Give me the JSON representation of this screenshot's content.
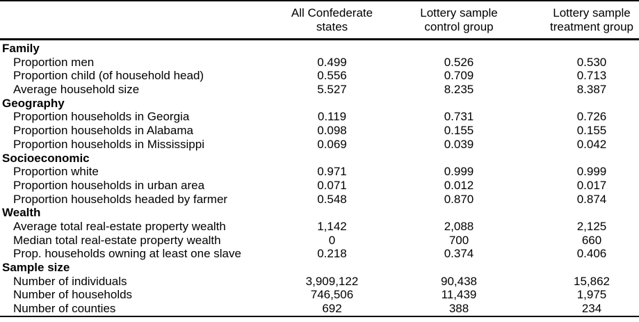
{
  "table": {
    "columns": [
      "All Confederate\nstates",
      "Lottery sample\ncontrol group",
      "Lottery sample\ntreatment group"
    ],
    "rows": [
      {
        "section": "Family"
      },
      {
        "label": "Proportion men",
        "values": [
          "0.499",
          "0.526",
          "0.530"
        ]
      },
      {
        "label": "Proportion child (of household head)",
        "values": [
          "0.556",
          "0.709",
          "0.713"
        ]
      },
      {
        "label": "Average household size",
        "values": [
          "5.527",
          "8.235",
          "8.387"
        ]
      },
      {
        "section": "Geography"
      },
      {
        "label": "Proportion households in Georgia",
        "values": [
          "0.119",
          "0.731",
          "0.726"
        ]
      },
      {
        "label": "Proportion households in Alabama",
        "values": [
          "0.098",
          "0.155",
          "0.155"
        ]
      },
      {
        "label": "Proportion households in Mississippi",
        "values": [
          "0.069",
          "0.039",
          "0.042"
        ]
      },
      {
        "section": "Socioeconomic"
      },
      {
        "label": "Proportion white",
        "values": [
          "0.971",
          "0.999",
          "0.999"
        ]
      },
      {
        "label": "Proportion households in urban area",
        "values": [
          "0.071",
          "0.012",
          "0.017"
        ]
      },
      {
        "label": "Proportion households headed by farmer",
        "values": [
          "0.548",
          "0.870",
          "0.874"
        ]
      },
      {
        "section": "Wealth"
      },
      {
        "label": "Average total real-estate property wealth",
        "values": [
          "1,142",
          "2,088",
          "2,125"
        ]
      },
      {
        "label": "Median total real-estate property wealth",
        "values": [
          "0",
          "700",
          "660"
        ]
      },
      {
        "label": "Prop. households owning at least one slave",
        "values": [
          "0.218",
          "0.374",
          "0.406"
        ]
      },
      {
        "section": "Sample size"
      },
      {
        "label": "Number of individuals",
        "values": [
          "3,909,122",
          "90,438",
          "15,862"
        ]
      },
      {
        "label": "Number of households",
        "values": [
          "746,506",
          "11,439",
          "1,975"
        ]
      },
      {
        "label": "Number of counties",
        "values": [
          "692",
          "388",
          "234"
        ]
      }
    ]
  }
}
